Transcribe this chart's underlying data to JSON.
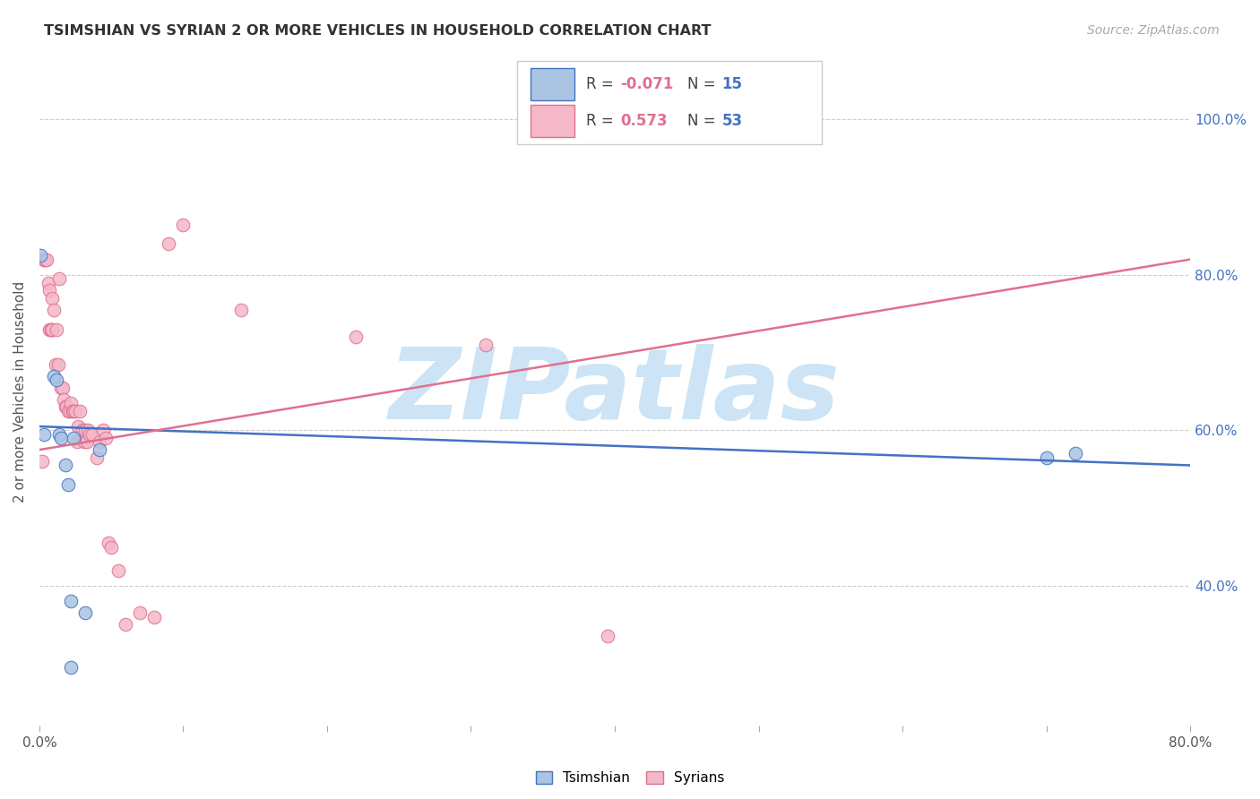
{
  "title": "TSIMSHIAN VS SYRIAN 2 OR MORE VEHICLES IN HOUSEHOLD CORRELATION CHART",
  "source": "Source: ZipAtlas.com",
  "ylabel": "2 or more Vehicles in Household",
  "xlim": [
    0.0,
    0.8
  ],
  "ylim": [
    0.22,
    1.08
  ],
  "xticks": [
    0.0,
    0.1,
    0.2,
    0.3,
    0.4,
    0.5,
    0.6,
    0.7,
    0.8
  ],
  "xticklabels": [
    "0.0%",
    "",
    "",
    "",
    "",
    "",
    "",
    "",
    "80.0%"
  ],
  "yticks_right": [
    1.0,
    0.8,
    0.6,
    0.4
  ],
  "yticklabels_right": [
    "100.0%",
    "80.0%",
    "60.0%",
    "40.0%"
  ],
  "legend_labels": [
    "Tsimshian",
    "Syrians"
  ],
  "R_tsimshian": -0.071,
  "N_tsimshian": 15,
  "R_syrians": 0.573,
  "N_syrians": 53,
  "tsimshian_color": "#aac4e2",
  "tsimshian_line_color": "#4472c4",
  "syrian_color": "#f4b8c8",
  "syrian_line_color": "#e07090",
  "watermark": "ZIPatlas",
  "watermark_color": "#cce4f5",
  "tsimshian_trend": [
    0.0,
    0.8,
    0.605,
    0.555
  ],
  "syrian_trend": [
    0.0,
    0.8,
    0.575,
    0.82
  ],
  "tsimshian_x": [
    0.001,
    0.003,
    0.01,
    0.012,
    0.014,
    0.015,
    0.018,
    0.02,
    0.022,
    0.024,
    0.032,
    0.042,
    0.7,
    0.72,
    0.022
  ],
  "tsimshian_y": [
    0.825,
    0.595,
    0.67,
    0.665,
    0.595,
    0.59,
    0.555,
    0.53,
    0.38,
    0.59,
    0.365,
    0.575,
    0.565,
    0.57,
    0.295
  ],
  "syrian_x": [
    0.002,
    0.003,
    0.004,
    0.005,
    0.006,
    0.007,
    0.007,
    0.008,
    0.008,
    0.009,
    0.009,
    0.01,
    0.011,
    0.012,
    0.013,
    0.014,
    0.015,
    0.016,
    0.017,
    0.018,
    0.019,
    0.02,
    0.021,
    0.022,
    0.023,
    0.024,
    0.025,
    0.026,
    0.027,
    0.028,
    0.03,
    0.031,
    0.032,
    0.033,
    0.034,
    0.035,
    0.037,
    0.04,
    0.042,
    0.044,
    0.046,
    0.048,
    0.05,
    0.055,
    0.06,
    0.07,
    0.08,
    0.09,
    0.1,
    0.14,
    0.22,
    0.31,
    0.395
  ],
  "syrian_y": [
    0.56,
    0.82,
    0.82,
    0.82,
    0.79,
    0.78,
    0.73,
    0.73,
    0.73,
    0.77,
    0.73,
    0.755,
    0.685,
    0.73,
    0.685,
    0.795,
    0.655,
    0.655,
    0.64,
    0.63,
    0.63,
    0.625,
    0.625,
    0.635,
    0.625,
    0.625,
    0.625,
    0.585,
    0.605,
    0.625,
    0.6,
    0.585,
    0.6,
    0.585,
    0.6,
    0.595,
    0.595,
    0.565,
    0.585,
    0.6,
    0.59,
    0.455,
    0.45,
    0.42,
    0.35,
    0.365,
    0.36,
    0.84,
    0.865,
    0.755,
    0.72,
    0.71,
    0.335
  ]
}
